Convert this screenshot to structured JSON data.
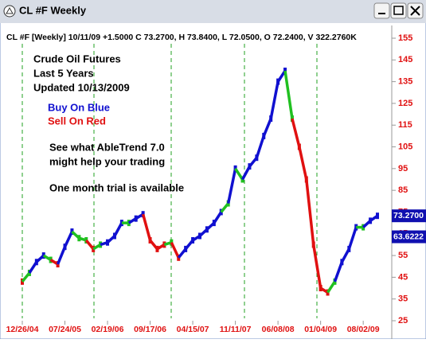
{
  "window": {
    "title": "CL #F Weekly"
  },
  "chart_data": {
    "type": "line",
    "header": "CL #F [Weekly] 10/11/09 +1.5000 C 73.2700, H 73.8400, L 72.0500, O 72.2400, V 322.2760K",
    "annotations": [
      "Crude Oil Futures",
      "Last 5 Years",
      "Updated 10/13/2009",
      "Buy On Blue",
      "Sell On Red",
      "See what AbleTrend 7.0",
      "might help your trading",
      "One month trial is available"
    ],
    "annotation_colors": [
      "#000000",
      "#000000",
      "#000000",
      "#1010d0",
      "#e01010",
      "#000000",
      "#000000",
      "#000000"
    ],
    "categories": [
      "12/26/04",
      null,
      null,
      null,
      null,
      null,
      "07/24/05",
      null,
      null,
      null,
      null,
      null,
      "02/19/06",
      null,
      null,
      null,
      null,
      null,
      "09/17/06",
      null,
      null,
      null,
      null,
      null,
      "04/15/07",
      null,
      null,
      null,
      null,
      null,
      "11/11/07",
      null,
      null,
      null,
      null,
      null,
      "06/08/08",
      null,
      null,
      null,
      null,
      null,
      "01/04/09",
      null,
      null,
      null,
      null,
      null,
      "08/02/09",
      null,
      null
    ],
    "values": [
      43,
      47,
      52,
      55,
      53,
      51,
      59,
      66,
      63,
      62,
      58,
      60,
      61,
      64,
      70,
      70,
      72,
      74,
      62,
      58,
      60,
      61,
      54,
      58,
      62,
      64,
      67,
      70,
      75,
      79,
      95,
      90,
      96,
      100,
      110,
      118,
      135,
      140,
      118,
      105,
      90,
      60,
      40,
      38,
      43,
      52,
      58,
      68,
      68,
      71,
      73.27
    ],
    "point_colors": [
      "#e01010",
      "#20c020",
      "#1010d0",
      "#1010d0",
      "#20c020",
      "#e01010",
      "#1010d0",
      "#1010d0",
      "#20c020",
      "#20c020",
      "#e01010",
      "#20c020",
      "#1010d0",
      "#1010d0",
      "#1010d0",
      "#20c020",
      "#1010d0",
      "#1010d0",
      "#e01010",
      "#e01010",
      "#e01010",
      "#20c020",
      "#e01010",
      "#1010d0",
      "#1010d0",
      "#1010d0",
      "#1010d0",
      "#1010d0",
      "#1010d0",
      "#20c020",
      "#1010d0",
      "#20c020",
      "#1010d0",
      "#1010d0",
      "#1010d0",
      "#1010d0",
      "#1010d0",
      "#1010d0",
      "#20c020",
      "#e01010",
      "#e01010",
      "#e01010",
      "#e01010",
      "#e01010",
      "#20c020",
      "#1010d0",
      "#1010d0",
      "#1010d0",
      "#20c020",
      "#1010d0",
      "#1010d0"
    ],
    "ylim": [
      25,
      155
    ],
    "yticks": [
      25,
      35,
      45,
      55,
      65,
      75,
      85,
      95,
      105,
      115,
      125,
      135,
      145,
      155
    ],
    "price_labels": [
      {
        "value": 73.27,
        "label": "73.2700"
      },
      {
        "value": 63.6222,
        "label": "63.6222"
      }
    ]
  }
}
